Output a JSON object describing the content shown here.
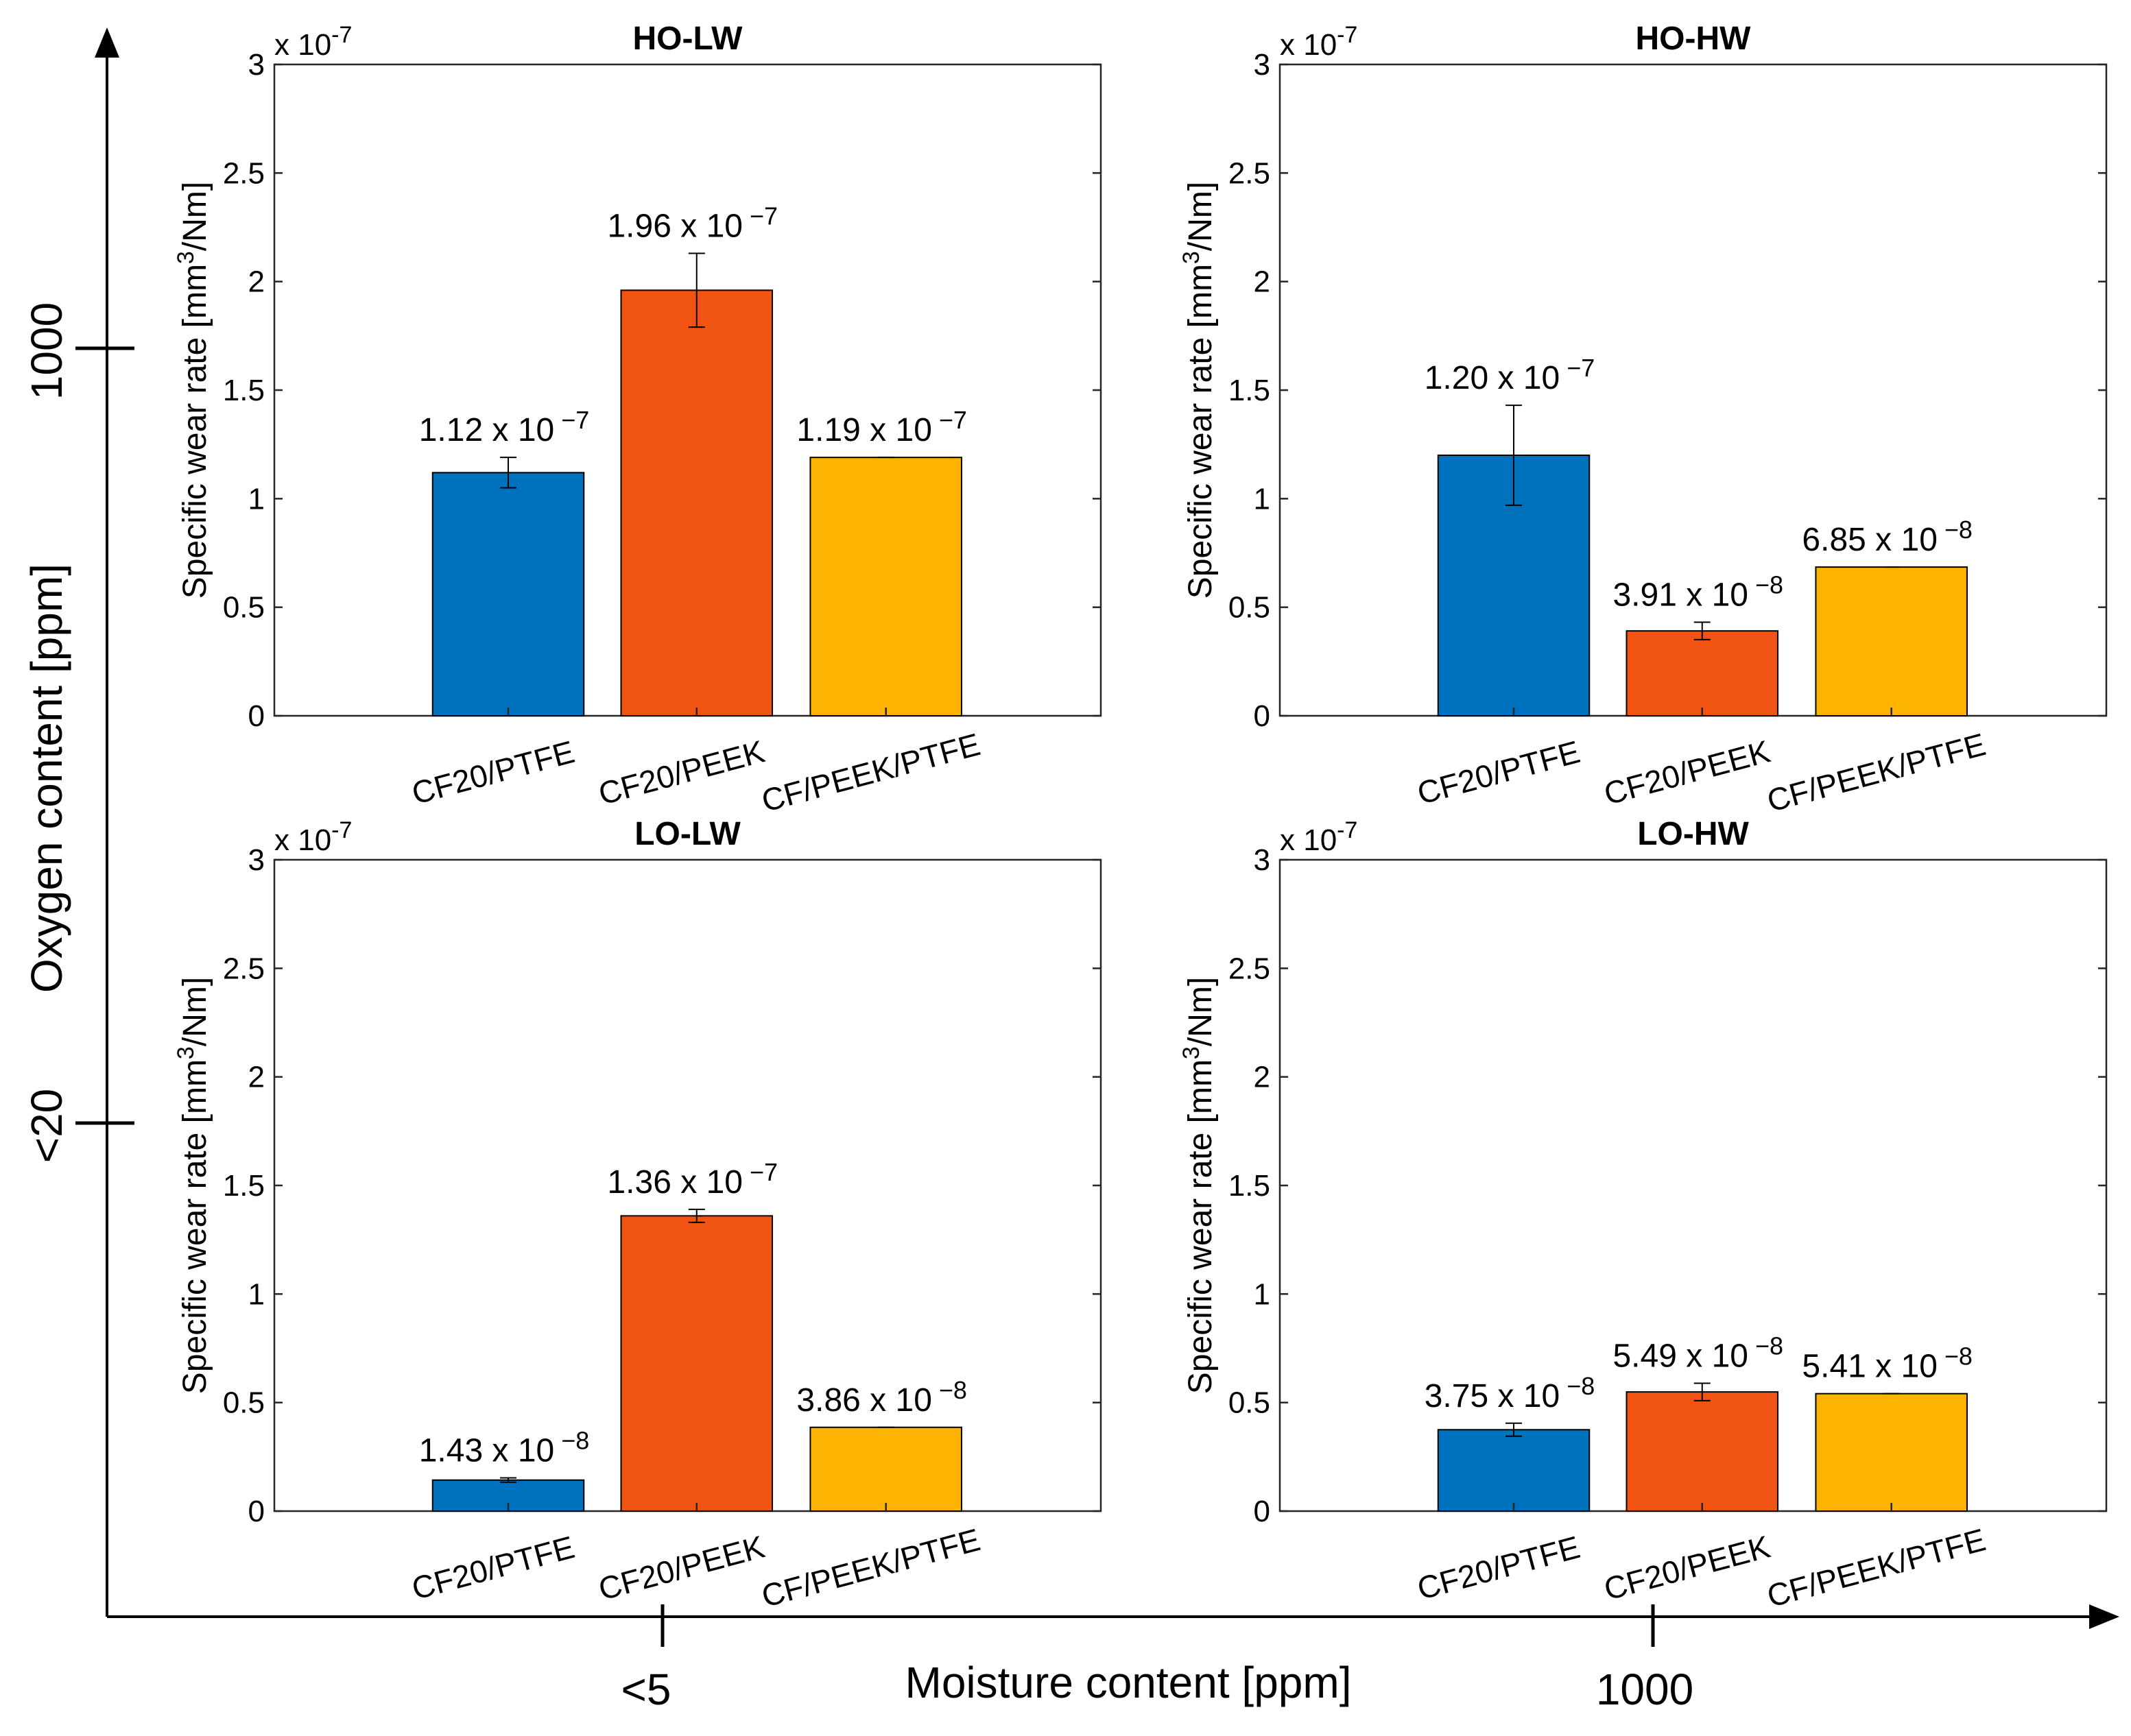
{
  "figure": {
    "x_axis_label": "Moisture content [ppm]",
    "y_axis_label": "Oxygen content [ppm]",
    "x_ticks": [
      "<5",
      "1000"
    ],
    "y_ticks": [
      "1000",
      "<20"
    ]
  },
  "colors": {
    "CF20/PTFE": "#0072BD",
    "CF20/PEEK": "#F15412",
    "CF/PEEK/PTFE": "#FDB302"
  },
  "chart_data": [
    {
      "type": "bar",
      "title": "HO-LW",
      "categories": [
        "CF20/PTFE",
        "CF20/PEEK",
        "CF/PEEK/PTFE"
      ],
      "values": [
        1.12e-07,
        1.96e-07,
        1.19e-07
      ],
      "errors": [
        7e-09,
        1.7e-08,
        0.0
      ],
      "data_labels": [
        "1.12 x 10",
        "1.96 x 10",
        "1.19 x 10"
      ],
      "data_label_exponents": [
        "−7",
        "−7",
        "−7"
      ],
      "ylabel": "Specific wear rate [mm",
      "ylabel_sup": "3",
      "ylabel_end": "/Nm]",
      "multiplier": "x 10",
      "multiplier_exp": "-7",
      "ylim": [
        0,
        3e-07
      ],
      "yticks": [
        "0",
        "0.5",
        "1",
        "1.5",
        "2",
        "2.5",
        "3"
      ]
    },
    {
      "type": "bar",
      "title": "HO-HW",
      "categories": [
        "CF20/PTFE",
        "CF20/PEEK",
        "CF/PEEK/PTFE"
      ],
      "values": [
        1.2e-07,
        3.91e-08,
        6.85e-08
      ],
      "errors": [
        2.3e-08,
        4e-09,
        0.0
      ],
      "data_labels": [
        "1.20 x 10",
        "3.91 x 10",
        "6.85 x 10"
      ],
      "data_label_exponents": [
        "−7",
        "−8",
        "−8"
      ],
      "ylabel": "Specific wear rate [mm",
      "ylabel_sup": "3",
      "ylabel_end": "/Nm]",
      "multiplier": "x 10",
      "multiplier_exp": "-7",
      "ylim": [
        0,
        3e-07
      ],
      "yticks": [
        "0",
        "0.5",
        "1",
        "1.5",
        "2",
        "2.5",
        "3"
      ]
    },
    {
      "type": "bar",
      "title": "LO-LW",
      "categories": [
        "CF20/PTFE",
        "CF20/PEEK",
        "CF/PEEK/PTFE"
      ],
      "values": [
        1.43e-08,
        1.36e-07,
        3.86e-08
      ],
      "errors": [
        1e-09,
        3e-09,
        0.0
      ],
      "data_labels": [
        "1.43 x 10",
        "1.36 x 10",
        "3.86 x 10"
      ],
      "data_label_exponents": [
        "−8",
        "−7",
        "−8"
      ],
      "ylabel": "Specific wear rate [mm",
      "ylabel_sup": "3",
      "ylabel_end": "/Nm]",
      "multiplier": "x 10",
      "multiplier_exp": "-7",
      "ylim": [
        0,
        3e-07
      ],
      "yticks": [
        "0",
        "0.5",
        "1",
        "1.5",
        "2",
        "2.5",
        "3"
      ]
    },
    {
      "type": "bar",
      "title": "LO-HW",
      "categories": [
        "CF20/PTFE",
        "CF20/PEEK",
        "CF/PEEK/PTFE"
      ],
      "values": [
        3.75e-08,
        5.49e-08,
        5.41e-08
      ],
      "errors": [
        3e-09,
        4e-09,
        0.0
      ],
      "data_labels": [
        "3.75 x 10",
        "5.49 x 10",
        "5.41 x 10"
      ],
      "data_label_exponents": [
        "−8",
        "−8",
        "−8"
      ],
      "ylabel": "Specific wear rate [mm",
      "ylabel_sup": "3",
      "ylabel_end": "/Nm]",
      "multiplier": "x 10",
      "multiplier_exp": "-7",
      "ylim": [
        0,
        3e-07
      ],
      "yticks": [
        "0",
        "0.5",
        "1",
        "1.5",
        "2",
        "2.5",
        "3"
      ]
    }
  ]
}
